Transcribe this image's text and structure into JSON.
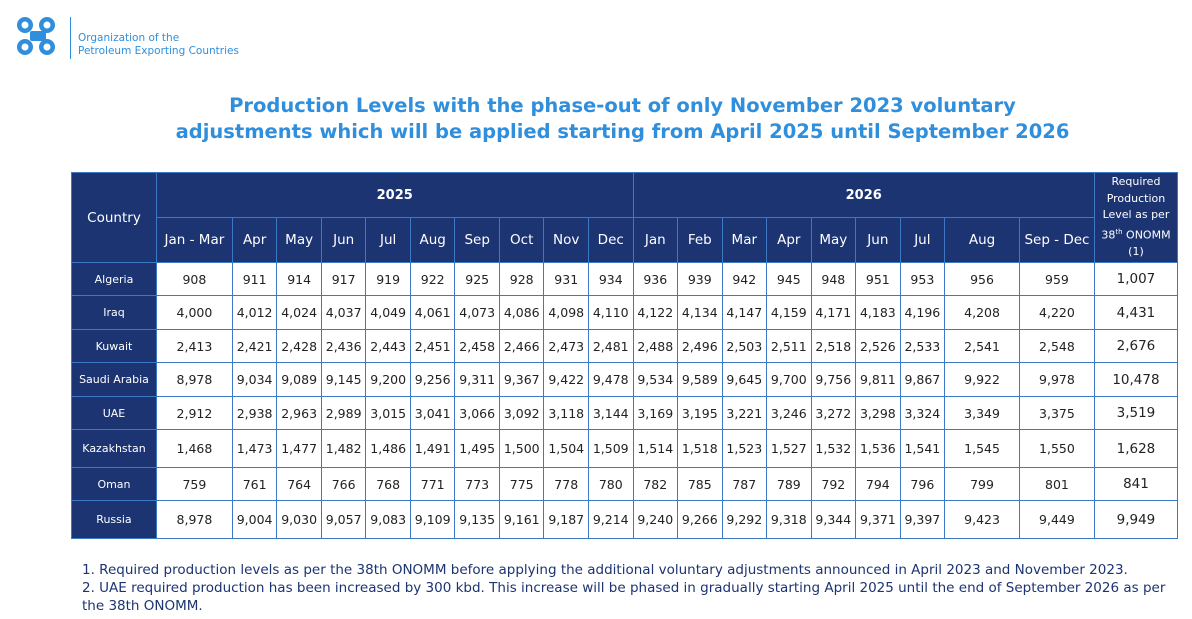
{
  "org": {
    "line1": "Organization of the",
    "line2": "Petroleum Exporting Countries",
    "logo_icon": "opec-logo-icon",
    "brand_color": "#2f8fdc",
    "header_color": "#1c3472"
  },
  "title": {
    "line1": "Production Levels with the phase-out of only November 2023 voluntary",
    "line2": "adjustments which will be applied starting from April 2025 until September 2026"
  },
  "table": {
    "country_header": "Country",
    "year1": "2025",
    "year2": "2026",
    "req_header": {
      "line1": "Required",
      "line2": "Production",
      "line3": "Level as per",
      "sup_num": "38",
      "sup_suffix": "th",
      "line4": "ONOMM",
      "line5": "(1)"
    },
    "months": [
      "Jan - Mar",
      "Apr",
      "May",
      "Jun",
      "Jul",
      "Aug",
      "Sep",
      "Oct",
      "Nov",
      "Dec",
      "Jan",
      "Feb",
      "Mar",
      "Apr",
      "May",
      "Jun",
      "Jul",
      "Aug",
      "Sep - Dec"
    ],
    "rows": [
      {
        "country": "Algeria",
        "values": [
          "908",
          "911",
          "914",
          "917",
          "919",
          "922",
          "925",
          "928",
          "931",
          "934",
          "936",
          "939",
          "942",
          "945",
          "948",
          "951",
          "953",
          "956",
          "959"
        ],
        "required": "1,007"
      },
      {
        "country": "Iraq",
        "values": [
          "4,000",
          "4,012",
          "4,024",
          "4,037",
          "4,049",
          "4,061",
          "4,073",
          "4,086",
          "4,098",
          "4,110",
          "4,122",
          "4,134",
          "4,147",
          "4,159",
          "4,171",
          "4,183",
          "4,196",
          "4,208",
          "4,220"
        ],
        "required": "4,431"
      },
      {
        "country": "Kuwait",
        "values": [
          "2,413",
          "2,421",
          "2,428",
          "2,436",
          "2,443",
          "2,451",
          "2,458",
          "2,466",
          "2,473",
          "2,481",
          "2,488",
          "2,496",
          "2,503",
          "2,511",
          "2,518",
          "2,526",
          "2,533",
          "2,541",
          "2,548"
        ],
        "required": "2,676"
      },
      {
        "country": "Saudi Arabia",
        "values": [
          "8,978",
          "9,034",
          "9,089",
          "9,145",
          "9,200",
          "9,256",
          "9,311",
          "9,367",
          "9,422",
          "9,478",
          "9,534",
          "9,589",
          "9,645",
          "9,700",
          "9,756",
          "9,811",
          "9,867",
          "9,922",
          "9,978"
        ],
        "required": "10,478"
      },
      {
        "country": "UAE",
        "values": [
          "2,912",
          "2,938",
          "2,963",
          "2,989",
          "3,015",
          "3,041",
          "3,066",
          "3,092",
          "3,118",
          "3,144",
          "3,169",
          "3,195",
          "3,221",
          "3,246",
          "3,272",
          "3,298",
          "3,324",
          "3,349",
          "3,375"
        ],
        "required": "3,519"
      },
      {
        "country": "Kazakhstan",
        "values": [
          "1,468",
          "1,473",
          "1,477",
          "1,482",
          "1,486",
          "1,491",
          "1,495",
          "1,500",
          "1,504",
          "1,509",
          "1,514",
          "1,518",
          "1,523",
          "1,527",
          "1,532",
          "1,536",
          "1,541",
          "1,545",
          "1,550"
        ],
        "required": "1,628"
      },
      {
        "country": "Oman",
        "values": [
          "759",
          "761",
          "764",
          "766",
          "768",
          "771",
          "773",
          "775",
          "778",
          "780",
          "782",
          "785",
          "787",
          "789",
          "792",
          "794",
          "796",
          "799",
          "801"
        ],
        "required": "841"
      },
      {
        "country": "Russia",
        "values": [
          "8,978",
          "9,004",
          "9,030",
          "9,057",
          "9,083",
          "9,109",
          "9,135",
          "9,161",
          "9,187",
          "9,214",
          "9,240",
          "9,266",
          "9,292",
          "9,318",
          "9,344",
          "9,371",
          "9,397",
          "9,423",
          "9,449"
        ],
        "required": "9,949"
      }
    ]
  },
  "notes": {
    "note1": "1. Required production levels as per the 38th ONOMM before applying the additional voluntary adjustments announced in April 2023 and November 2023.",
    "note2": "2. UAE required production has been increased by 300 kbd. This increase will be phased in gradually starting April 2025 until the end of September 2026 as per the 38th ONOMM."
  }
}
